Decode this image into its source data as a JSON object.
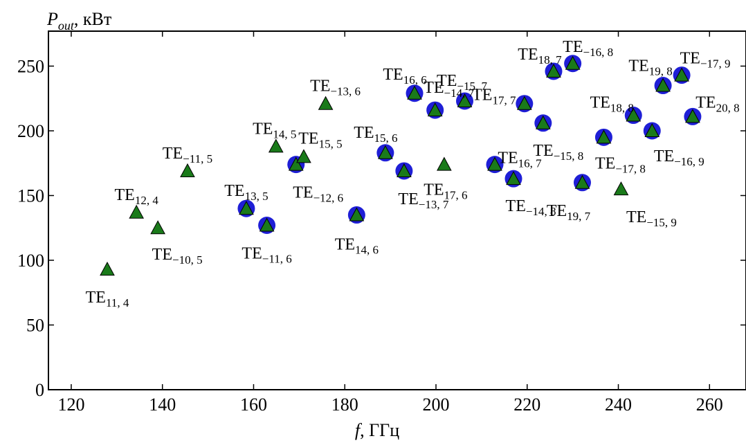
{
  "chart_data": {
    "type": "scatter",
    "title": "",
    "xlabel": {
      "var": "f",
      "unit": ", ГГц"
    },
    "ylabel": {
      "var": "P",
      "sub": "out",
      "unit": ", кВт"
    },
    "xlim": [
      115,
      268
    ],
    "ylim": [
      0,
      277
    ],
    "xticks": [
      120,
      140,
      160,
      180,
      200,
      220,
      240,
      260
    ],
    "yticks": [
      0,
      50,
      100,
      150,
      200,
      250
    ],
    "grid": false,
    "marker_colors": {
      "circle": "#1f1fd6",
      "triangle": "#1a7a1a"
    },
    "points": [
      {
        "label": "TE",
        "sub": "11, 4",
        "x": 127.9,
        "y": 93,
        "circle": false
      },
      {
        "label": "TE",
        "sub": "12, 4",
        "x": 134.3,
        "y": 137,
        "circle": false
      },
      {
        "label": "TE",
        "sub": "−10, 5",
        "x": 139.0,
        "y": 125,
        "circle": false
      },
      {
        "label": "TE",
        "sub": "−11, 5",
        "x": 145.5,
        "y": 169,
        "circle": false
      },
      {
        "label": "TE",
        "sub": "13, 5",
        "x": 158.4,
        "y": 140,
        "circle": true
      },
      {
        "label": "TE",
        "sub": "−11, 6",
        "x": 162.9,
        "y": 127,
        "circle": true
      },
      {
        "label": "TE",
        "sub": "14, 5",
        "x": 164.9,
        "y": 188,
        "circle": false
      },
      {
        "label": "TE",
        "sub": "−12, 6",
        "x": 169.3,
        "y": 174,
        "circle": true
      },
      {
        "label": "TE",
        "sub": "15, 5",
        "x": 171.0,
        "y": 180,
        "circle": false
      },
      {
        "label": "TE",
        "sub": "−13, 6",
        "x": 175.8,
        "y": 221,
        "circle": false
      },
      {
        "label": "TE",
        "sub": "14, 6",
        "x": 182.6,
        "y": 135,
        "circle": true
      },
      {
        "label": "TE",
        "sub": "15, 6",
        "x": 188.9,
        "y": 183,
        "circle": true
      },
      {
        "label": "TE",
        "sub": "−13, 7",
        "x": 193.0,
        "y": 169,
        "circle": true
      },
      {
        "label": "TE",
        "sub": "16, 6",
        "x": 195.3,
        "y": 229,
        "circle": true
      },
      {
        "label": "TE",
        "sub": "−14, 7",
        "x": 199.8,
        "y": 216,
        "circle": true
      },
      {
        "label": "TE",
        "sub": "17, 6",
        "x": 201.8,
        "y": 174,
        "circle": false
      },
      {
        "label": "TE",
        "sub": "−15, 7",
        "x": 206.3,
        "y": 223,
        "circle": true
      },
      {
        "label": "TE",
        "sub": "16, 7",
        "x": 212.9,
        "y": 174,
        "circle": true
      },
      {
        "label": "TE",
        "sub": "−14, 8",
        "x": 217.0,
        "y": 163,
        "circle": true
      },
      {
        "label": "TE",
        "sub": "17, 7",
        "x": 219.4,
        "y": 221,
        "circle": true
      },
      {
        "label": "TE",
        "sub": "−15, 8",
        "x": 223.5,
        "y": 206,
        "circle": true
      },
      {
        "label": "TE",
        "sub": "18, 7",
        "x": 225.8,
        "y": 246,
        "circle": true
      },
      {
        "label": "TE",
        "sub": "−16, 8",
        "x": 230.0,
        "y": 252,
        "circle": true
      },
      {
        "label": "TE",
        "sub": "19, 7",
        "x": 232.1,
        "y": 160,
        "circle": true
      },
      {
        "label": "TE",
        "sub": "−17, 8",
        "x": 236.8,
        "y": 195,
        "circle": true
      },
      {
        "label": "TE",
        "sub": "−15, 9",
        "x": 240.6,
        "y": 155,
        "circle": false
      },
      {
        "label": "TE",
        "sub": "18, 8",
        "x": 243.3,
        "y": 212,
        "circle": true
      },
      {
        "label": "TE",
        "sub": "−16, 9",
        "x": 247.4,
        "y": 200,
        "circle": true
      },
      {
        "label": "TE",
        "sub": "19, 8",
        "x": 249.8,
        "y": 235,
        "circle": true
      },
      {
        "label": "TE",
        "sub": "−17, 9",
        "x": 253.9,
        "y": 243,
        "circle": true
      },
      {
        "label": "TE",
        "sub": "20, 8",
        "x": 256.3,
        "y": 211,
        "circle": true
      }
    ]
  }
}
